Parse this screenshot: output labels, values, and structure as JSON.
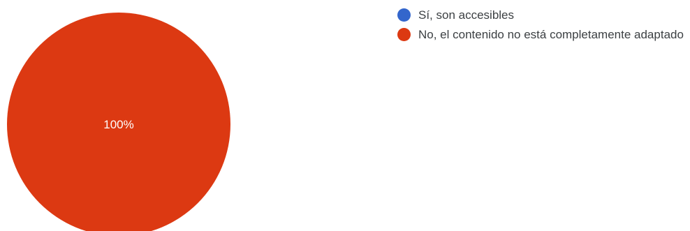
{
  "chart_data": {
    "type": "pie",
    "categories": [
      "Sí, son accesibles",
      "No, el contenido no está completamente adaptado"
    ],
    "values": [
      0,
      100
    ],
    "colors": [
      "#3366cc",
      "#dc3912"
    ],
    "data_labels": [
      "",
      "100%"
    ],
    "legend_position": "right"
  }
}
